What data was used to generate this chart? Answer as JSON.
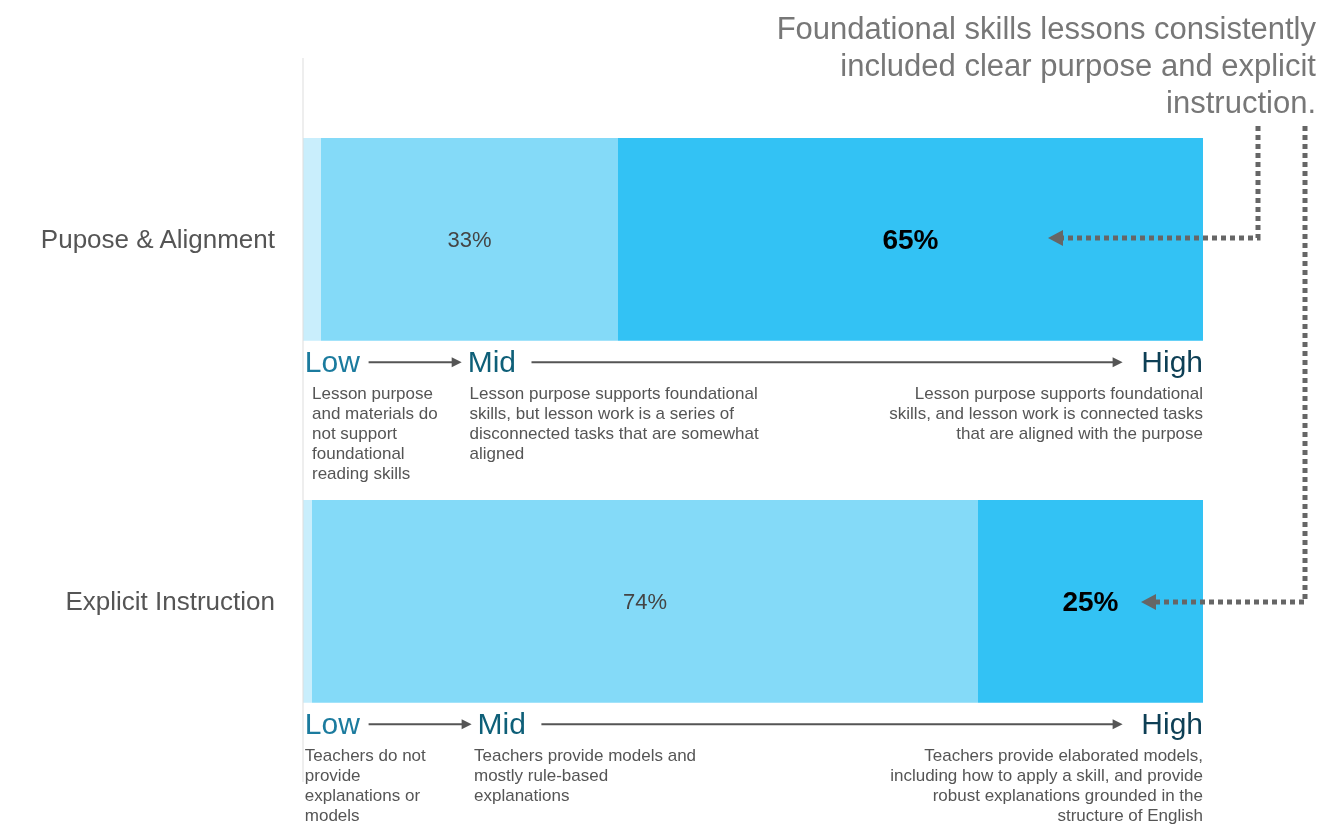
{
  "chart_data": {
    "type": "bar",
    "orientation": "horizontal",
    "stacked": true,
    "title": "Foundational skills lessons consistently included clear purpose and explicit instruction.",
    "categories": [
      "Pupose & Alignment",
      "Explicit Instruction"
    ],
    "xlim": [
      0,
      100
    ],
    "series": [
      {
        "color": "#c9eefc",
        "values": [
          2,
          1
        ]
      },
      {
        "color": "#84daf8",
        "values": [
          33,
          74
        ],
        "value_labels": [
          "33%",
          "74%"
        ]
      },
      {
        "color": "#33c2f4",
        "values": [
          65,
          25
        ],
        "value_labels": [
          "65%",
          "25%"
        ]
      }
    ],
    "annotations": [
      "Low",
      "Lesson purpose and materials do not support foundational reading skills",
      "Mid",
      "Lesson purpose supports foundational skills, but lesson work is a series of disconnected tasks that are somewhat aligned",
      "High",
      "Lesson purpose supports foundational skills, and lesson work is connected tasks that are aligned with the purpose",
      "Low",
      "Teachers do not provide explanations or models",
      "Mid",
      "Teachers provide models and mostly rule-based explanations",
      "High",
      "Teachers provide elaborated models, including how to apply a skill, and provide robust explanations grounded in the structure of English"
    ]
  }
}
